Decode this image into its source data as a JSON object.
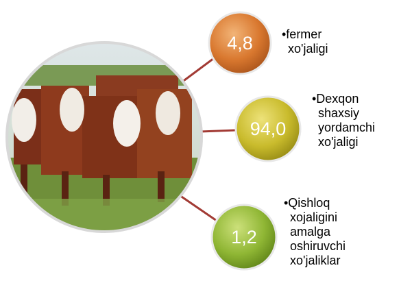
{
  "nodes": [
    {
      "value": "4,8",
      "label": "•fermer xo'jaligi"
    },
    {
      "value": "94,0",
      "label": "•Dexqon shaxsiy yordamchi xo'jaligi"
    },
    {
      "value": "1,2",
      "label": "•Qishloq xojaligini amalga oshiruvchi xo'jaliklar"
    }
  ]
}
